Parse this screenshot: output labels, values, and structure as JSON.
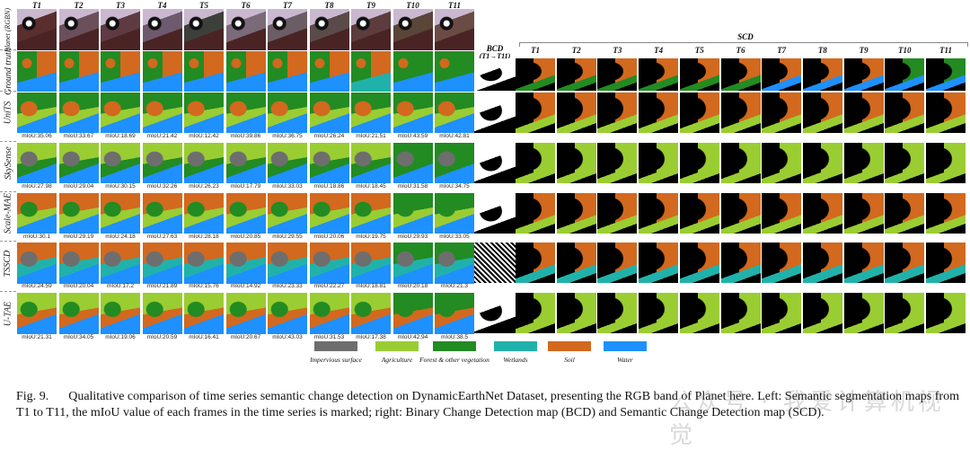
{
  "left_panel": {
    "time_headers": [
      "T1",
      "T2",
      "T3",
      "T4",
      "T5",
      "T6",
      "T7",
      "T8",
      "T9",
      "T10",
      "T11"
    ],
    "rows": [
      {
        "label": "Planet (RGBN)",
        "kind": "rgb",
        "miou": []
      },
      {
        "label": "Ground truth",
        "kind": "gt",
        "miou": []
      },
      {
        "label": "UniTS",
        "kind": "pred",
        "miou": [
          "mIoU:35.06",
          "mIoU:33.67",
          "mIoU:18.69",
          "mIoU:21.42",
          "mIoU:12.42",
          "mIoU:39.86",
          "mIoU:36.75",
          "mIoU:26.24",
          "mIoU:21.51",
          "mIoU:43.59",
          "mIoU:42.81"
        ]
      },
      {
        "label": "SkySense",
        "kind": "pred",
        "miou": [
          "mIoU:27.98",
          "mIoU:29.04",
          "mIoU:30.15",
          "mIoU:32.26",
          "mIoU:26.23",
          "mIoU:17.79",
          "mIoU:33.03",
          "mIoU:18.86",
          "mIoU:18.45",
          "mIoU:31.58",
          "mIoU:34.75"
        ]
      },
      {
        "label": "Scale-MAE",
        "kind": "pred",
        "miou": [
          "mIoU:30.1",
          "mIoU:29.19",
          "mIoU:24.18",
          "mIoU:27.63",
          "mIoU:28.18",
          "mIoU:20.85",
          "mIoU:29.55",
          "mIoU:20.06",
          "mIoU:19.75",
          "mIoU:29.93",
          "mIoU:33.05"
        ]
      },
      {
        "label": "TSSCD",
        "kind": "pred",
        "miou": [
          "mIoU:24.59",
          "mIoU:20.04",
          "mIoU:17.2",
          "mIoU:21.89",
          "mIoU:15.76",
          "mIoU:14.92",
          "mIoU:23.33",
          "mIoU:22.27",
          "mIoU:18.81",
          "mIoU:20.18",
          "mIoU:21.3"
        ]
      },
      {
        "label": "U-TAE",
        "kind": "pred",
        "miou": [
          "mIoU:21.31",
          "mIoU:34.05",
          "mIoU:19.06",
          "mIoU:20.59",
          "mIoU:16.41",
          "mIoU:20.67",
          "mIoU:43.03",
          "mIoU:31.53",
          "mIoU:17.38",
          "mIoU:42.94",
          "mIoU:38.5"
        ]
      }
    ]
  },
  "right_panel": {
    "bcd_title": "BCD",
    "bcd_subtitle": "(T1→T11)",
    "scd_title": "SCD",
    "time_headers": [
      "T1",
      "T2",
      "T3",
      "T4",
      "T5",
      "T6",
      "T7",
      "T8",
      "T9",
      "T10",
      "T11"
    ]
  },
  "legend": [
    {
      "label": "Impervious surface",
      "color": "#6e6e6e"
    },
    {
      "label": "Agriculture",
      "color": "#9acd32"
    },
    {
      "label": "Forest & other vegetation",
      "color": "#228b22"
    },
    {
      "label": "Wetlands",
      "color": "#20b2aa"
    },
    {
      "label": "Soil",
      "color": "#d2691e"
    },
    {
      "label": "Water",
      "color": "#1e90ff"
    }
  ],
  "caption": {
    "fig_label": "Fig. 9.",
    "text": "Qualitative comparison of time series semantic change detection on DynamicEarthNet Dataset, presenting the RGB band of Planet here. Left: Semantic segmentation maps from T1 to T11, the mIoU value of each frames in the time series is marked; right: Binary Change Detection map (BCD) and Semantic Change Detection map (SCD)."
  },
  "watermark": "公众号 · 我爱计算机视觉"
}
